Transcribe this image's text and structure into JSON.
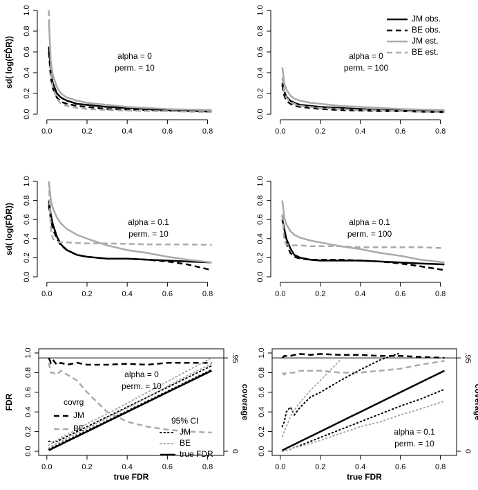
{
  "chart_data": [
    {
      "type": "line",
      "x": [
        0.01,
        0.02,
        0.03,
        0.05,
        0.07,
        0.1,
        0.15,
        0.2,
        0.3,
        0.4,
        0.5,
        0.6,
        0.7,
        0.82
      ],
      "xlim": [
        -0.02,
        0.86
      ],
      "ylim": [
        0,
        1
      ],
      "xticks": [
        {
          "value": 0,
          "label": "0.0"
        },
        {
          "value": 0.2,
          "label": "0.2"
        },
        {
          "value": 0.4,
          "label": "0.4"
        },
        {
          "value": 0.6,
          "label": "0.6"
        },
        {
          "value": 0.8,
          "label": "0.8"
        }
      ],
      "yticks": [
        {
          "value": 0,
          "label": "0.0"
        },
        {
          "value": 0.2,
          "label": "0.2"
        },
        {
          "value": 0.4,
          "label": "0.4"
        },
        {
          "value": 0.6,
          "label": "0.6"
        },
        {
          "value": 0.8,
          "label": "0.8"
        },
        {
          "value": 1,
          "label": "1.0"
        }
      ],
      "ylabel": "sd( log(FD̂R))",
      "annotation": [
        "alpha = 0",
        "perm. = 10"
      ],
      "legend": false,
      "box": false,
      "series": [
        {
          "name": "JM obs.",
          "color": "#000000",
          "dash": "solid",
          "values": [
            0.65,
            0.4,
            0.3,
            0.2,
            0.16,
            0.13,
            0.1,
            0.09,
            0.07,
            0.06,
            0.05,
            0.04,
            0.035,
            0.03
          ]
        },
        {
          "name": "BE obs.",
          "color": "#000000",
          "dash": "dashed",
          "values": [
            0.6,
            0.35,
            0.25,
            0.16,
            0.12,
            0.1,
            0.08,
            0.07,
            0.05,
            0.045,
            0.04,
            0.035,
            0.03,
            0.025
          ]
        },
        {
          "name": "JM est.",
          "color": "#aaaaaa",
          "dash": "solid",
          "values": [
            0.9,
            0.5,
            0.38,
            0.26,
            0.2,
            0.16,
            0.13,
            0.11,
            0.09,
            0.07,
            0.06,
            0.05,
            0.045,
            0.04
          ]
        },
        {
          "name": "BE est.",
          "color": "#aaaaaa",
          "dash": "dashed",
          "values": [
            1.0,
            0.4,
            0.25,
            0.15,
            0.1,
            0.08,
            0.06,
            0.05,
            0.04,
            0.035,
            0.03,
            0.03,
            0.025,
            0.02
          ]
        }
      ]
    },
    {
      "type": "line",
      "x": [
        0.01,
        0.02,
        0.03,
        0.05,
        0.07,
        0.1,
        0.15,
        0.2,
        0.3,
        0.4,
        0.5,
        0.6,
        0.7,
        0.82
      ],
      "xlim": [
        -0.02,
        0.86
      ],
      "ylim": [
        0,
        1
      ],
      "xticks": [
        {
          "value": 0,
          "label": "0.0"
        },
        {
          "value": 0.2,
          "label": "0.2"
        },
        {
          "value": 0.4,
          "label": "0.4"
        },
        {
          "value": 0.6,
          "label": "0.6"
        },
        {
          "value": 0.8,
          "label": "0.8"
        }
      ],
      "yticks": [
        {
          "value": 0,
          "label": "0.0"
        },
        {
          "value": 0.2,
          "label": "0.2"
        },
        {
          "value": 0.4,
          "label": "0.4"
        },
        {
          "value": 0.6,
          "label": "0.6"
        },
        {
          "value": 0.8,
          "label": "0.8"
        },
        {
          "value": 1,
          "label": "1.0"
        }
      ],
      "annotation": [
        "alpha = 0",
        "perm. = 100"
      ],
      "legend": true,
      "box": false,
      "series": [
        {
          "name": "JM obs.",
          "color": "#000000",
          "dash": "solid",
          "values": [
            0.3,
            0.22,
            0.17,
            0.13,
            0.11,
            0.09,
            0.08,
            0.07,
            0.06,
            0.05,
            0.04,
            0.035,
            0.03,
            0.03
          ]
        },
        {
          "name": "BE obs.",
          "color": "#000000",
          "dash": "dashed",
          "values": [
            0.28,
            0.18,
            0.13,
            0.1,
            0.08,
            0.07,
            0.06,
            0.05,
            0.04,
            0.035,
            0.03,
            0.03,
            0.025,
            0.02
          ]
        },
        {
          "name": "JM est.",
          "color": "#aaaaaa",
          "dash": "solid",
          "values": [
            0.45,
            0.3,
            0.24,
            0.18,
            0.15,
            0.13,
            0.11,
            0.1,
            0.08,
            0.07,
            0.06,
            0.05,
            0.045,
            0.04
          ]
        },
        {
          "name": "BE est.",
          "color": "#aaaaaa",
          "dash": "dashed",
          "values": [
            0.35,
            0.22,
            0.16,
            0.12,
            0.1,
            0.08,
            0.07,
            0.06,
            0.05,
            0.04,
            0.035,
            0.03,
            0.025,
            0.02
          ]
        }
      ]
    },
    {
      "type": "line",
      "x": [
        0.01,
        0.02,
        0.03,
        0.05,
        0.07,
        0.1,
        0.15,
        0.2,
        0.3,
        0.4,
        0.5,
        0.6,
        0.7,
        0.82
      ],
      "xlim": [
        -0.02,
        0.86
      ],
      "ylim": [
        0,
        1
      ],
      "xticks": [
        {
          "value": 0,
          "label": "0.0"
        },
        {
          "value": 0.2,
          "label": "0.2"
        },
        {
          "value": 0.4,
          "label": "0.4"
        },
        {
          "value": 0.6,
          "label": "0.6"
        },
        {
          "value": 0.8,
          "label": "0.8"
        }
      ],
      "yticks": [
        {
          "value": 0,
          "label": "0.0"
        },
        {
          "value": 0.2,
          "label": "0.2"
        },
        {
          "value": 0.4,
          "label": "0.4"
        },
        {
          "value": 0.6,
          "label": "0.6"
        },
        {
          "value": 0.8,
          "label": "0.8"
        },
        {
          "value": 1,
          "label": "1.0"
        }
      ],
      "ylabel": "sd( log(FD̂R))",
      "annotation": [
        "alpha = 0.1",
        "perm. = 10"
      ],
      "legend": false,
      "box": false,
      "series": [
        {
          "name": "JM obs.",
          "color": "#000000",
          "dash": "solid",
          "values": [
            0.8,
            0.65,
            0.55,
            0.42,
            0.34,
            0.28,
            0.23,
            0.21,
            0.19,
            0.19,
            0.18,
            0.17,
            0.16,
            0.15
          ]
        },
        {
          "name": "BE obs.",
          "color": "#000000",
          "dash": "dashed",
          "values": [
            0.75,
            0.6,
            0.5,
            0.4,
            0.33,
            0.28,
            0.23,
            0.21,
            0.19,
            0.19,
            0.18,
            0.16,
            0.13,
            0.07
          ]
        },
        {
          "name": "JM est.",
          "color": "#aaaaaa",
          "dash": "solid",
          "values": [
            1.0,
            0.8,
            0.72,
            0.62,
            0.56,
            0.5,
            0.44,
            0.4,
            0.33,
            0.28,
            0.25,
            0.21,
            0.18,
            0.15
          ]
        },
        {
          "name": "BE est.",
          "color": "#aaaaaa",
          "dash": "dashed",
          "values": [
            1.0,
            0.5,
            0.4,
            0.37,
            0.36,
            0.36,
            0.355,
            0.35,
            0.35,
            0.345,
            0.34,
            0.34,
            0.34,
            0.335
          ]
        }
      ]
    },
    {
      "type": "line",
      "x": [
        0.01,
        0.02,
        0.03,
        0.05,
        0.07,
        0.1,
        0.15,
        0.2,
        0.3,
        0.4,
        0.5,
        0.6,
        0.7,
        0.82
      ],
      "xlim": [
        -0.02,
        0.86
      ],
      "ylim": [
        0,
        1
      ],
      "xticks": [
        {
          "value": 0,
          "label": "0.0"
        },
        {
          "value": 0.2,
          "label": "0.2"
        },
        {
          "value": 0.4,
          "label": "0.4"
        },
        {
          "value": 0.6,
          "label": "0.6"
        },
        {
          "value": 0.8,
          "label": "0.8"
        }
      ],
      "yticks": [
        {
          "value": 0,
          "label": "0.0"
        },
        {
          "value": 0.2,
          "label": "0.2"
        },
        {
          "value": 0.4,
          "label": "0.4"
        },
        {
          "value": 0.6,
          "label": "0.6"
        },
        {
          "value": 0.8,
          "label": "0.8"
        },
        {
          "value": 1,
          "label": "1.0"
        }
      ],
      "annotation": [
        "alpha = 0.1",
        "perm. = 100"
      ],
      "legend": false,
      "box": false,
      "series": [
        {
          "name": "JM obs.",
          "color": "#000000",
          "dash": "solid",
          "values": [
            0.6,
            0.5,
            0.4,
            0.3,
            0.23,
            0.2,
            0.18,
            0.17,
            0.17,
            0.17,
            0.16,
            0.15,
            0.14,
            0.13
          ]
        },
        {
          "name": "BE obs.",
          "color": "#000000",
          "dash": "dashed",
          "values": [
            0.65,
            0.45,
            0.35,
            0.25,
            0.21,
            0.19,
            0.18,
            0.18,
            0.18,
            0.17,
            0.16,
            0.14,
            0.11,
            0.07
          ]
        },
        {
          "name": "JM est.",
          "color": "#aaaaaa",
          "dash": "solid",
          "values": [
            0.8,
            0.62,
            0.55,
            0.48,
            0.44,
            0.41,
            0.38,
            0.36,
            0.32,
            0.29,
            0.25,
            0.22,
            0.18,
            0.15
          ]
        },
        {
          "name": "BE est.",
          "color": "#aaaaaa",
          "dash": "dashed",
          "values": [
            0.65,
            0.38,
            0.34,
            0.33,
            0.33,
            0.33,
            0.32,
            0.32,
            0.32,
            0.31,
            0.31,
            0.31,
            0.31,
            0.3
          ]
        }
      ]
    },
    {
      "type": "line",
      "x": [
        0.01,
        0.02,
        0.03,
        0.05,
        0.07,
        0.1,
        0.15,
        0.2,
        0.3,
        0.4,
        0.5,
        0.6,
        0.7,
        0.82
      ],
      "xlim": [
        -0.02,
        0.86
      ],
      "ylim": [
        0,
        1
      ],
      "y2lim": [
        0,
        1
      ],
      "xticks": [
        {
          "value": 0,
          "label": "0.0"
        },
        {
          "value": 0.2,
          "label": "0.2"
        },
        {
          "value": 0.4,
          "label": "0.4"
        },
        {
          "value": 0.6,
          "label": "0.6"
        },
        {
          "value": 0.8,
          "label": "0.8"
        }
      ],
      "yticks": [
        {
          "value": 0,
          "label": "0.0"
        },
        {
          "value": 0.2,
          "label": "0.2"
        },
        {
          "value": 0.4,
          "label": "0.4"
        },
        {
          "value": 0.6,
          "label": "0.6"
        },
        {
          "value": 0.8,
          "label": "0.8"
        },
        {
          "value": 1,
          "label": "1.0"
        }
      ],
      "y2ticks": [
        {
          "value": 0.95,
          "label": ".95"
        },
        0
      ],
      "refline": true,
      "ylabel": "FDR",
      "xlabel": "true FDR",
      "y2label": "coverage",
      "annotation": [
        "alpha = 0",
        "perm. = 10"
      ],
      "legend": true,
      "box": true,
      "legend_titles": [
        "covrg",
        "95% CI"
      ],
      "series": [
        {
          "name": "JM",
          "color": "#000000",
          "dash": "dashed",
          "axis": "y2",
          "legend_group": 0,
          "values": [
            0.95,
            0.9,
            0.93,
            0.88,
            0.9,
            0.88,
            0.9,
            0.88,
            0.88,
            0.89,
            0.88,
            0.9,
            0.9,
            0.9
          ]
        },
        {
          "name": "BE",
          "color": "#aaaaaa",
          "dash": "dashed",
          "axis": "y2",
          "legend_group": 0,
          "values": [
            0.9,
            0.8,
            0.8,
            0.78,
            0.82,
            0.78,
            0.72,
            0.6,
            0.4,
            0.3,
            0.25,
            0.22,
            0.2,
            0.19
          ]
        },
        {
          "name": "JM",
          "color": "#000000",
          "dash": "dotted",
          "legend_group": 1,
          "values": [
            0.02,
            0.03,
            0.04,
            0.06,
            0.08,
            0.11,
            0.16,
            0.21,
            0.31,
            0.41,
            0.51,
            0.61,
            0.71,
            0.83
          ],
          "upper": [
            0.1,
            0.1,
            0.09,
            0.1,
            0.12,
            0.15,
            0.2,
            0.25,
            0.35,
            0.45,
            0.55,
            0.65,
            0.75,
            0.87
          ]
        },
        {
          "name": "BE",
          "color": "#aaaaaa",
          "dash": "dotted",
          "legend_group": 1,
          "values": [
            0.03,
            0.05,
            0.06,
            0.08,
            0.1,
            0.13,
            0.18,
            0.23,
            0.34,
            0.44,
            0.55,
            0.66,
            0.77,
            0.89
          ],
          "upper": [
            0.06,
            0.08,
            0.09,
            0.11,
            0.14,
            0.17,
            0.22,
            0.28,
            0.38,
            0.49,
            0.6,
            0.71,
            0.82,
            0.95
          ]
        },
        {
          "name": "true FDR",
          "color": "#000000",
          "dash": "solid",
          "legend_group": 1,
          "values": [
            0.01,
            0.02,
            0.03,
            0.05,
            0.07,
            0.1,
            0.15,
            0.2,
            0.3,
            0.4,
            0.5,
            0.6,
            0.7,
            0.82
          ]
        }
      ]
    },
    {
      "type": "line",
      "x": [
        0.01,
        0.02,
        0.03,
        0.05,
        0.07,
        0.1,
        0.15,
        0.2,
        0.3,
        0.4,
        0.5,
        0.6,
        0.7,
        0.82
      ],
      "xlim": [
        -0.02,
        0.86
      ],
      "ylim": [
        0,
        1
      ],
      "y2lim": [
        0,
        1
      ],
      "xticks": [
        {
          "value": 0,
          "label": "0.0"
        },
        {
          "value": 0.2,
          "label": "0.2"
        },
        {
          "value": 0.4,
          "label": "0.4"
        },
        {
          "value": 0.6,
          "label": "0.6"
        },
        {
          "value": 0.8,
          "label": "0.8"
        }
      ],
      "yticks": [
        {
          "value": 0,
          "label": "0.0"
        },
        {
          "value": 0.2,
          "label": "0.2"
        },
        {
          "value": 0.4,
          "label": "0.4"
        },
        {
          "value": 0.6,
          "label": "0.6"
        },
        {
          "value": 0.8,
          "label": "0.8"
        },
        {
          "value": 1,
          "label": "1.0"
        }
      ],
      "y2ticks": [
        {
          "value": 0.95,
          "label": ".95"
        },
        0
      ],
      "refline": true,
      "xlabel": "true FDR",
      "y2label": "coverage",
      "annotation": [
        "alpha = 0.1",
        "perm. = 10"
      ],
      "legend": false,
      "box": true,
      "series": [
        {
          "name": "JM",
          "color": "#000000",
          "dash": "dashed",
          "axis": "y2",
          "values": [
            0.95,
            0.97,
            0.97,
            0.97,
            0.98,
            0.99,
            0.98,
            0.99,
            0.98,
            0.98,
            0.97,
            0.97,
            0.96,
            0.95
          ]
        },
        {
          "name": "BE",
          "color": "#aaaaaa",
          "dash": "dashed",
          "axis": "y2",
          "values": [
            0.8,
            0.78,
            0.8,
            0.8,
            0.8,
            0.82,
            0.82,
            0.82,
            0.8,
            0.8,
            0.82,
            0.84,
            0.88,
            0.92
          ]
        },
        {
          "name": "JM",
          "color": "#000000",
          "dash": "dotted",
          "values": [
            0,
            0.005,
            0.01,
            0.02,
            0.04,
            0.06,
            0.1,
            0.14,
            0.22,
            0.3,
            0.38,
            0.46,
            0.53,
            0.63
          ],
          "upper": [
            0.25,
            0.3,
            0.4,
            0.45,
            0.37,
            0.45,
            0.55,
            0.6,
            0.72,
            0.83,
            0.93,
            1.0,
            null,
            null
          ]
        },
        {
          "name": "BE",
          "color": "#aaaaaa",
          "dash": "dotted",
          "values": [
            0,
            0.005,
            0.01,
            0.02,
            0.04,
            0.05,
            0.08,
            0.11,
            0.18,
            0.25,
            0.3,
            0.37,
            0.43,
            0.51
          ],
          "upper": [
            0.15,
            0.2,
            0.25,
            0.35,
            0.42,
            0.5,
            0.62,
            0.72,
            0.93,
            null,
            null,
            null,
            null,
            null
          ]
        },
        {
          "name": "true FDR",
          "color": "#000000",
          "dash": "solid",
          "values": [
            0.01,
            0.02,
            0.03,
            0.05,
            0.07,
            0.1,
            0.15,
            0.2,
            0.3,
            0.4,
            0.5,
            0.6,
            0.7,
            0.82
          ]
        }
      ]
    }
  ]
}
